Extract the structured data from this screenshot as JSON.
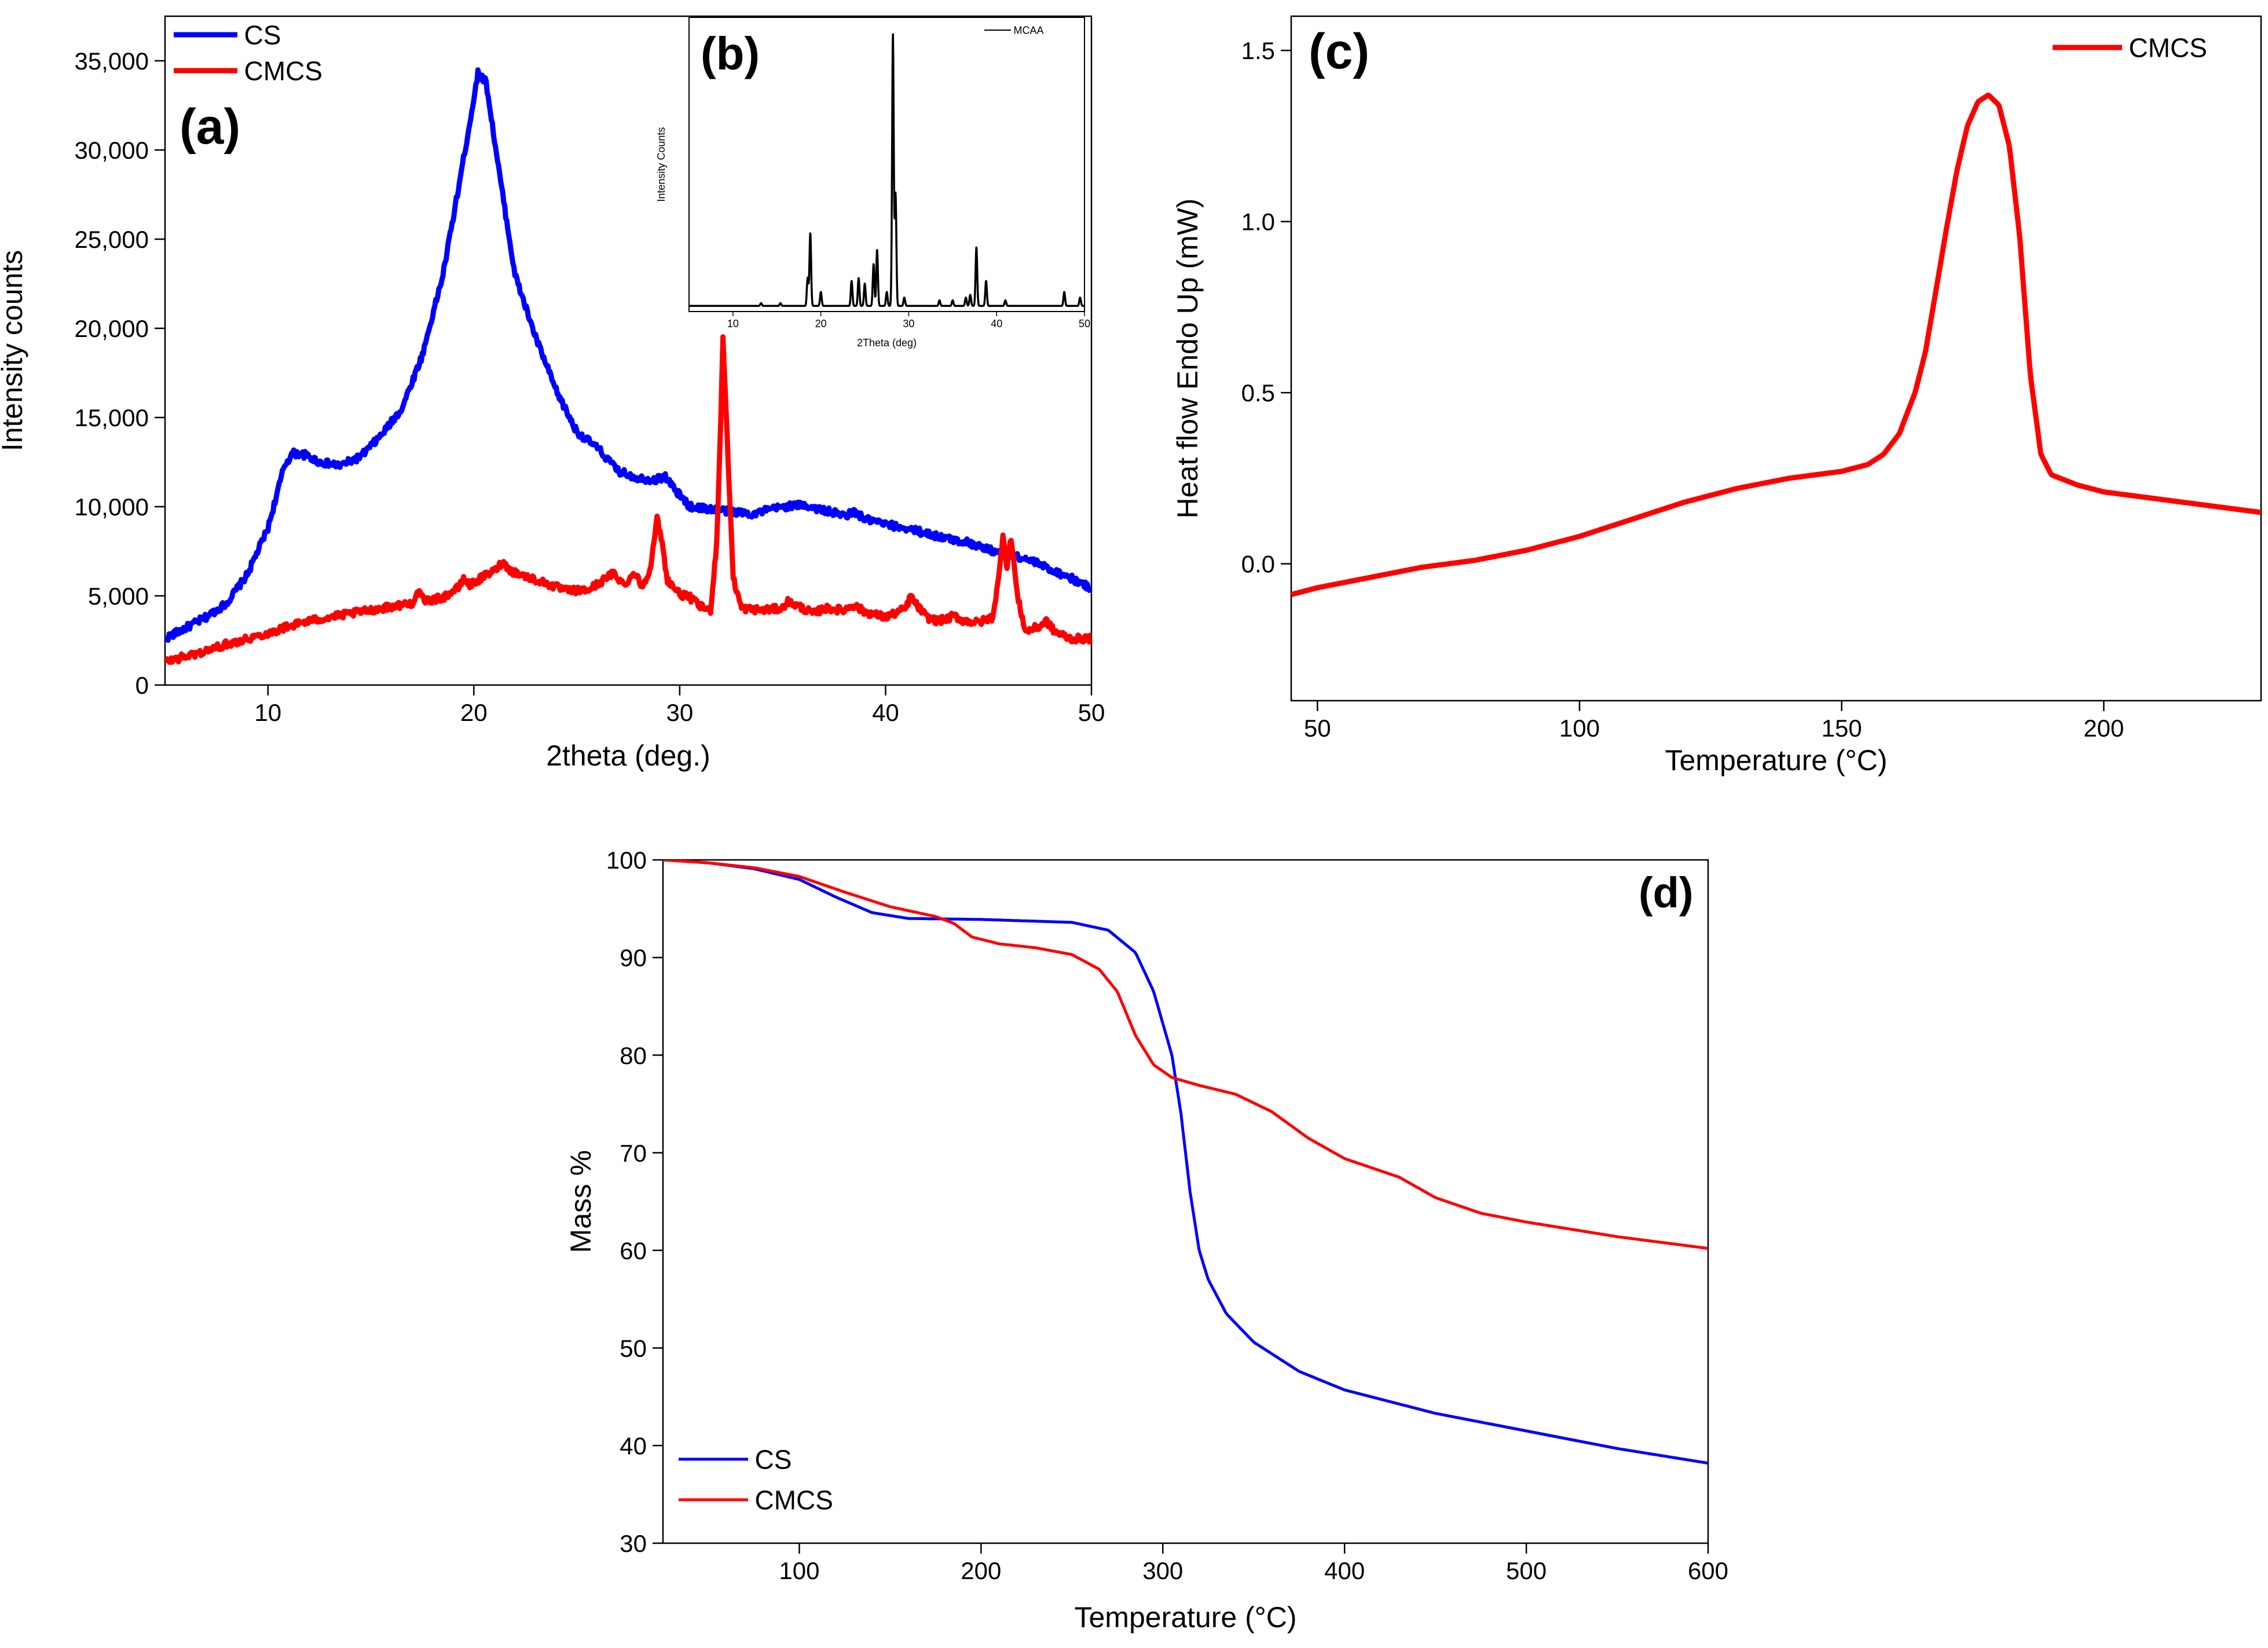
{
  "colors": {
    "cs": "#0000ff",
    "cmcs": "#ff0000",
    "mcaa": "#000000"
  },
  "chart_data": [
    {
      "id": "a",
      "panel_label": "(a)",
      "type": "line",
      "xlabel": "2theta (deg.)",
      "ylabel": "Intensity counts",
      "xlim": [
        5,
        50
      ],
      "ylim": [
        0,
        37500
      ],
      "xticks": [
        10,
        20,
        30,
        40,
        50
      ],
      "yticks": [
        0,
        5000,
        10000,
        15000,
        20000,
        25000,
        30000,
        35000
      ],
      "ytick_labels": [
        "0",
        "5,000",
        "10,000",
        "15,000",
        "20,000",
        "25,000",
        "30,000",
        "35,000"
      ],
      "legend": "top-left",
      "series": [
        {
          "name": "CS",
          "color": "#0000ff",
          "noise": 200,
          "points": [
            [
              5,
              2600
            ],
            [
              6,
              3200
            ],
            [
              7,
              3800
            ],
            [
              8,
              4600
            ],
            [
              9,
              6200
            ],
            [
              10,
              8800
            ],
            [
              10.8,
              12300
            ],
            [
              11.2,
              13000
            ],
            [
              11.8,
              12900
            ],
            [
              12.5,
              12500
            ],
            [
              13.5,
              12300
            ],
            [
              14.5,
              12800
            ],
            [
              15.5,
              14000
            ],
            [
              16.5,
              15500
            ],
            [
              17.5,
              18500
            ],
            [
              18.5,
              23000
            ],
            [
              19.2,
              27500
            ],
            [
              19.8,
              31500
            ],
            [
              20.2,
              34300
            ],
            [
              20.6,
              33800
            ],
            [
              21.2,
              29000
            ],
            [
              22,
              23000
            ],
            [
              23,
              19500
            ],
            [
              24,
              16500
            ],
            [
              25,
              14200
            ],
            [
              26,
              13300
            ],
            [
              27,
              12000
            ],
            [
              28,
              11600
            ],
            [
              28.8,
              11500
            ],
            [
              29.3,
              11700
            ],
            [
              29.8,
              10900
            ],
            [
              30.5,
              10000
            ],
            [
              32,
              9800
            ],
            [
              33.5,
              9600
            ],
            [
              35,
              10000
            ],
            [
              36,
              10100
            ],
            [
              37,
              9800
            ],
            [
              38,
              9500
            ],
            [
              38.5,
              9700
            ],
            [
              39,
              9300
            ],
            [
              40,
              9000
            ],
            [
              41,
              8800
            ],
            [
              42,
              8500
            ],
            [
              43,
              8200
            ],
            [
              44,
              8000
            ],
            [
              45,
              7600
            ],
            [
              46,
              7300
            ],
            [
              47,
              7000
            ],
            [
              48,
              6500
            ],
            [
              49,
              6000
            ],
            [
              50,
              5400
            ]
          ]
        },
        {
          "name": "CMCS",
          "color": "#ff0000",
          "noise": 200,
          "points": [
            [
              5,
              1300
            ],
            [
              6,
              1600
            ],
            [
              7,
              1900
            ],
            [
              8,
              2300
            ],
            [
              9,
              2600
            ],
            [
              10,
              2900
            ],
            [
              11,
              3300
            ],
            [
              12,
              3600
            ],
            [
              13,
              3800
            ],
            [
              14,
              4000
            ],
            [
              15,
              4200
            ],
            [
              16,
              4400
            ],
            [
              17,
              4600
            ],
            [
              17.3,
              5200
            ],
            [
              17.6,
              4700
            ],
            [
              18.5,
              4900
            ],
            [
              19.3,
              5500
            ],
            [
              19.5,
              6000
            ],
            [
              19.8,
              5600
            ],
            [
              20.5,
              6100
            ],
            [
              21,
              6400
            ],
            [
              21.4,
              6900
            ],
            [
              21.8,
              6400
            ],
            [
              22.5,
              6100
            ],
            [
              23.5,
              5700
            ],
            [
              24.5,
              5300
            ],
            [
              25.5,
              5300
            ],
            [
              26.2,
              5800
            ],
            [
              26.8,
              6300
            ],
            [
              27.3,
              5600
            ],
            [
              27.8,
              6300
            ],
            [
              28.2,
              5500
            ],
            [
              28.6,
              6700
            ],
            [
              28.9,
              9300
            ],
            [
              29.1,
              8300
            ],
            [
              29.4,
              5900
            ],
            [
              30,
              5100
            ],
            [
              30.5,
              4900
            ],
            [
              31,
              4400
            ],
            [
              31.5,
              4200
            ],
            [
              31.8,
              8000
            ],
            [
              32,
              15000
            ],
            [
              32.1,
              19600
            ],
            [
              32.3,
              14000
            ],
            [
              32.6,
              6000
            ],
            [
              33,
              4300
            ],
            [
              34,
              4200
            ],
            [
              35,
              4300
            ],
            [
              35.2,
              4700
            ],
            [
              36,
              4300
            ],
            [
              36.5,
              4000
            ],
            [
              37,
              4300
            ],
            [
              38,
              4200
            ],
            [
              38.4,
              4500
            ],
            [
              39,
              4100
            ],
            [
              40,
              3800
            ],
            [
              41,
              4300
            ],
            [
              41.2,
              5000
            ],
            [
              41.5,
              4500
            ],
            [
              42,
              3800
            ],
            [
              42.5,
              3600
            ],
            [
              43,
              3700
            ],
            [
              43.3,
              3900
            ],
            [
              43.8,
              3600
            ],
            [
              44.5,
              3500
            ],
            [
              45.2,
              3800
            ],
            [
              45.5,
              6000
            ],
            [
              45.7,
              8500
            ],
            [
              45.9,
              6600
            ],
            [
              46.1,
              8300
            ],
            [
              46.4,
              5000
            ],
            [
              46.8,
              3000
            ],
            [
              47.5,
              3300
            ],
            [
              47.8,
              3600
            ],
            [
              48.2,
              3000
            ],
            [
              49,
              2600
            ],
            [
              50,
              2600
            ]
          ]
        }
      ]
    },
    {
      "id": "b",
      "panel_label": "(b)",
      "type": "line",
      "inset_of": "a",
      "xlabel": "2Theta (deg)",
      "ylabel": "Intensity Counts",
      "xlim": [
        5,
        50
      ],
      "ylim": [
        0,
        1.05
      ],
      "xticks": [
        10,
        20,
        30,
        40,
        50
      ],
      "legend": "top-right",
      "series": [
        {
          "name": "MCAA",
          "color": "#000000",
          "noise": 0,
          "baseline": 0.02,
          "peaks": [
            [
              13.2,
              0.01
            ],
            [
              15.4,
              0.01
            ],
            [
              18.5,
              0.1
            ],
            [
              18.8,
              0.26
            ],
            [
              20,
              0.05
            ],
            [
              23.5,
              0.09
            ],
            [
              24.3,
              0.1
            ],
            [
              25,
              0.08
            ],
            [
              26,
              0.15
            ],
            [
              26.4,
              0.2
            ],
            [
              27.5,
              0.05
            ],
            [
              28.2,
              0.97
            ],
            [
              28.5,
              0.4
            ],
            [
              29.5,
              0.03
            ],
            [
              33.5,
              0.02
            ],
            [
              35,
              0.02
            ],
            [
              36.5,
              0.03
            ],
            [
              37,
              0.04
            ],
            [
              37.7,
              0.21
            ],
            [
              38.8,
              0.09
            ],
            [
              41,
              0.02
            ],
            [
              47.7,
              0.05
            ],
            [
              49.5,
              0.03
            ]
          ]
        }
      ]
    },
    {
      "id": "c",
      "panel_label": "(c)",
      "type": "line",
      "xlabel": "Temperature (°C)",
      "ylabel": "Heat flow Endo Up (mW)",
      "xlim": [
        45,
        230
      ],
      "ylim": [
        -0.4,
        1.6
      ],
      "xticks": [
        50,
        100,
        150,
        200
      ],
      "yticks": [
        0.0,
        0.5,
        1.0,
        1.5
      ],
      "ytick_labels": [
        "0.0",
        "0.5",
        "1.0",
        "1.5"
      ],
      "legend": "top-right",
      "series": [
        {
          "name": "CMCS",
          "color": "#ff0000",
          "noise": 0,
          "points": [
            [
              45,
              -0.09
            ],
            [
              50,
              -0.07
            ],
            [
              60,
              -0.04
            ],
            [
              70,
              -0.01
            ],
            [
              80,
              0.01
            ],
            [
              90,
              0.04
            ],
            [
              100,
              0.08
            ],
            [
              110,
              0.13
            ],
            [
              120,
              0.18
            ],
            [
              130,
              0.22
            ],
            [
              140,
              0.25
            ],
            [
              150,
              0.27
            ],
            [
              155,
              0.29
            ],
            [
              158,
              0.32
            ],
            [
              161,
              0.38
            ],
            [
              164,
              0.5
            ],
            [
              166,
              0.62
            ],
            [
              168,
              0.8
            ],
            [
              170,
              0.98
            ],
            [
              172,
              1.15
            ],
            [
              174,
              1.28
            ],
            [
              176,
              1.35
            ],
            [
              178,
              1.37
            ],
            [
              180,
              1.34
            ],
            [
              182,
              1.22
            ],
            [
              184,
              0.95
            ],
            [
              186,
              0.55
            ],
            [
              188,
              0.32
            ],
            [
              190,
              0.26
            ],
            [
              195,
              0.23
            ],
            [
              200,
              0.21
            ],
            [
              210,
              0.19
            ],
            [
              220,
              0.17
            ],
            [
              230,
              0.15
            ]
          ]
        }
      ]
    },
    {
      "id": "d",
      "panel_label": "(d)",
      "type": "line",
      "xlabel": "Temperature (°C)",
      "ylabel": "Mass %",
      "xlim": [
        25,
        600
      ],
      "ylim": [
        30,
        100
      ],
      "xticks": [
        100,
        200,
        300,
        400,
        500,
        600
      ],
      "yticks": [
        30,
        40,
        50,
        60,
        70,
        80,
        90,
        100
      ],
      "ytick_labels": [
        "30",
        "40",
        "50",
        "60",
        "70",
        "80",
        "90",
        "100"
      ],
      "legend": "bottom-left",
      "series": [
        {
          "name": "CS",
          "color": "#0000ff",
          "noise": 0,
          "points": [
            [
              25,
              100
            ],
            [
              50,
              99.7
            ],
            [
              75,
              99.1
            ],
            [
              100,
              98
            ],
            [
              120,
              96.2
            ],
            [
              140,
              94.6
            ],
            [
              160,
              94.0
            ],
            [
              200,
              93.9
            ],
            [
              250,
              93.6
            ],
            [
              270,
              92.8
            ],
            [
              285,
              90.5
            ],
            [
              295,
              86.5
            ],
            [
              305,
              80
            ],
            [
              310,
              74
            ],
            [
              315,
              66
            ],
            [
              320,
              60
            ],
            [
              325,
              57
            ],
            [
              335,
              53.5
            ],
            [
              350,
              50.6
            ],
            [
              375,
              47.6
            ],
            [
              400,
              45.7
            ],
            [
              450,
              43.3
            ],
            [
              500,
              41.5
            ],
            [
              550,
              39.7
            ],
            [
              600,
              38.2
            ]
          ]
        },
        {
          "name": "CMCS",
          "color": "#ff0000",
          "noise": 0,
          "points": [
            [
              25,
              100
            ],
            [
              50,
              99.7
            ],
            [
              75,
              99.2
            ],
            [
              100,
              98.3
            ],
            [
              125,
              96.7
            ],
            [
              150,
              95.2
            ],
            [
              175,
              94.2
            ],
            [
              185,
              93.5
            ],
            [
              195,
              92.1
            ],
            [
              210,
              91.4
            ],
            [
              230,
              91.0
            ],
            [
              250,
              90.3
            ],
            [
              265,
              88.8
            ],
            [
              275,
              86.5
            ],
            [
              285,
              82
            ],
            [
              295,
              79
            ],
            [
              305,
              77.7
            ],
            [
              320,
              76.9
            ],
            [
              340,
              76.0
            ],
            [
              360,
              74.2
            ],
            [
              380,
              71.5
            ],
            [
              400,
              69.4
            ],
            [
              430,
              67.5
            ],
            [
              450,
              65.4
            ],
            [
              475,
              63.8
            ],
            [
              500,
              62.9
            ],
            [
              550,
              61.4
            ],
            [
              600,
              60.2
            ]
          ]
        }
      ]
    }
  ]
}
